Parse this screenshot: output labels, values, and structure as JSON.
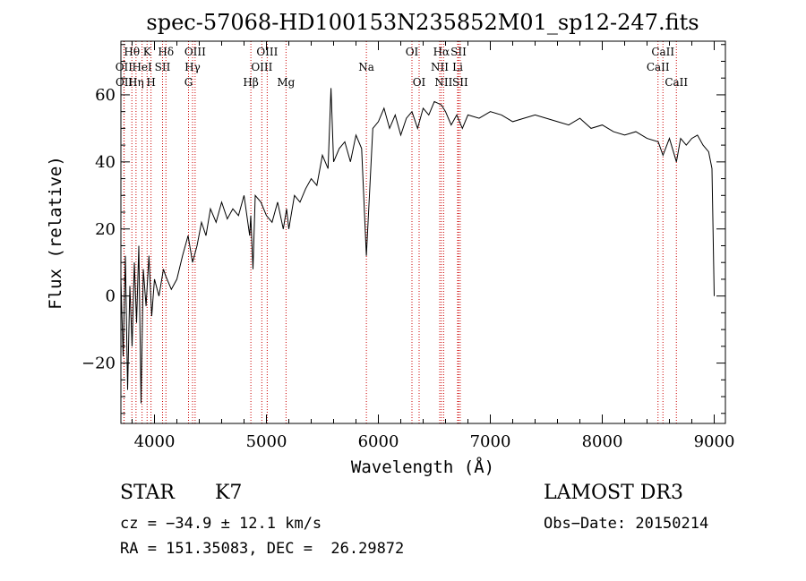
{
  "chart_data": {
    "type": "line",
    "title": "spec-57068-HD100153N235852M01_sp12-247.fits",
    "xlabel": "Wavelength (Å)",
    "ylabel": "Flux (relative)",
    "xlim": [
      3700,
      9100
    ],
    "ylim": [
      -38,
      76
    ],
    "xticks": [
      4000,
      5000,
      6000,
      7000,
      8000,
      9000
    ],
    "xtick_labels": [
      "4000",
      "5000",
      "6000",
      "7000",
      "8000",
      "9000"
    ],
    "yticks": [
      -20,
      0,
      20,
      40,
      60
    ],
    "ytick_labels": [
      "−20",
      "0",
      "20",
      "40",
      "60"
    ],
    "grid": false,
    "series": [
      {
        "name": "Flux",
        "x": [
          3700,
          3720,
          3740,
          3760,
          3780,
          3800,
          3820,
          3840,
          3860,
          3880,
          3900,
          3925,
          3950,
          3975,
          4000,
          4040,
          4080,
          4100,
          4150,
          4200,
          4250,
          4300,
          4340,
          4380,
          4420,
          4460,
          4500,
          4550,
          4600,
          4650,
          4700,
          4750,
          4800,
          4850,
          4860,
          4880,
          4900,
          4950,
          5000,
          5050,
          5100,
          5150,
          5180,
          5200,
          5250,
          5300,
          5350,
          5400,
          5450,
          5500,
          5550,
          5577,
          5600,
          5650,
          5700,
          5750,
          5800,
          5850,
          5893,
          5950,
          6000,
          6050,
          6100,
          6150,
          6200,
          6250,
          6300,
          6350,
          6400,
          6450,
          6500,
          6563,
          6600,
          6650,
          6700,
          6750,
          6800,
          6900,
          7000,
          7100,
          7200,
          7300,
          7400,
          7500,
          7600,
          7700,
          7800,
          7900,
          8000,
          8100,
          8200,
          8300,
          8400,
          8500,
          8542,
          8600,
          8662,
          8700,
          8750,
          8800,
          8850,
          8900,
          8950,
          8980,
          9000
        ],
        "y": [
          5,
          -18,
          12,
          -28,
          3,
          -15,
          10,
          -8,
          15,
          -32,
          8,
          -3,
          12,
          -6,
          5,
          0,
          8,
          6,
          2,
          5,
          12,
          18,
          10,
          15,
          22,
          18,
          26,
          22,
          28,
          23,
          26,
          24,
          30,
          18,
          24,
          8,
          30,
          28,
          24,
          22,
          28,
          20,
          26,
          20,
          30,
          28,
          32,
          35,
          33,
          42,
          38,
          62,
          40,
          44,
          46,
          40,
          48,
          44,
          12,
          50,
          52,
          56,
          50,
          54,
          48,
          53,
          55,
          50,
          56,
          54,
          58,
          57,
          55,
          51,
          54,
          50,
          54,
          53,
          55,
          54,
          52,
          53,
          54,
          53,
          52,
          51,
          53,
          50,
          51,
          49,
          48,
          49,
          47,
          46,
          42,
          47,
          40,
          47,
          45,
          47,
          48,
          45,
          43,
          38,
          0
        ]
      }
    ],
    "spectral_lines": [
      {
        "label": "Hθ",
        "x": 3798,
        "row": 1
      },
      {
        "label": "OII",
        "x": 3727,
        "row": 2
      },
      {
        "label": "OII",
        "x": 3729,
        "row": 3
      },
      {
        "label": "K",
        "x": 3934,
        "row": 1
      },
      {
        "label": "HeI",
        "x": 3889,
        "row": 2
      },
      {
        "label": "Hη",
        "x": 3835,
        "row": 3
      },
      {
        "label": "H",
        "x": 3969,
        "row": 3
      },
      {
        "label": "Hδ",
        "x": 4102,
        "row": 1
      },
      {
        "label": "SII",
        "x": 4072,
        "row": 2
      },
      {
        "label": "OIII",
        "x": 4363,
        "row": 1
      },
      {
        "label": "Hγ",
        "x": 4340,
        "row": 2
      },
      {
        "label": "G",
        "x": 4304,
        "row": 3
      },
      {
        "label": "OIII",
        "x": 5007,
        "row": 1
      },
      {
        "label": "OIII",
        "x": 4959,
        "row": 2
      },
      {
        "label": "Hβ",
        "x": 4861,
        "row": 3
      },
      {
        "label": "Mg",
        "x": 5175,
        "row": 3
      },
      {
        "label": "Na",
        "x": 5893,
        "row": 2
      },
      {
        "label": "OI",
        "x": 6300,
        "row": 1
      },
      {
        "label": "OI",
        "x": 6364,
        "row": 3
      },
      {
        "label": "Hα",
        "x": 6563,
        "row": 1
      },
      {
        "label": "SII",
        "x": 6716,
        "row": 1
      },
      {
        "label": "NII",
        "x": 6548,
        "row": 2
      },
      {
        "label": "Li",
        "x": 6708,
        "row": 2
      },
      {
        "label": "NII",
        "x": 6583,
        "row": 3
      },
      {
        "label": "SII",
        "x": 6731,
        "row": 3
      },
      {
        "label": "CaII",
        "x": 8542,
        "row": 1
      },
      {
        "label": "CaII",
        "x": 8498,
        "row": 2
      },
      {
        "label": "CaII",
        "x": 8662,
        "row": 3
      }
    ]
  },
  "info": {
    "object_class": "STAR",
    "subclass": "K7",
    "survey": "LAMOST DR3",
    "cz": "cz = −34.9 ± 12.1 km/s",
    "obs_date": "Obs−Date: 20150214",
    "coords": "RA = 151.35083, DEC =  26.29872"
  },
  "colors": {
    "spectrum": "#000000",
    "line_marker": "#cc0000",
    "axes": "#000000",
    "background": "#ffffff"
  }
}
